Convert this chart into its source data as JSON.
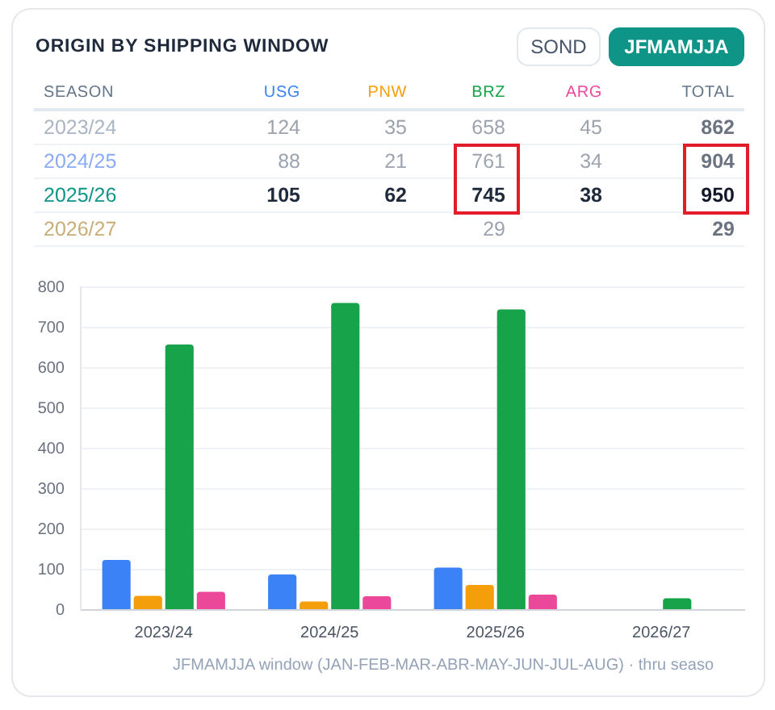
{
  "chart_data": [
    {
      "type": "other",
      "title": "ORIGIN BY SHIPPING WINDOW",
      "annotations": [
        "SOND",
        "JFMAMJJA",
        "SEASON"
      ],
      "data_labels": true,
      "categories": [
        "2023/24",
        "2024/25",
        "2025/26",
        "2026/27"
      ],
      "series": [
        {
          "name": "USG",
          "color": "#3b82f6",
          "values": [
            124,
            88,
            105,
            null
          ]
        },
        {
          "name": "PNW",
          "color": "#f59e0b",
          "values": [
            35,
            21,
            62,
            null
          ]
        },
        {
          "name": "BRZ",
          "color": "#16a34a",
          "values": [
            658,
            761,
            745,
            29
          ]
        },
        {
          "name": "ARG",
          "color": "#ec4899",
          "values": [
            45,
            34,
            38,
            null
          ]
        },
        {
          "name": "TOTAL",
          "color": "#64748b",
          "values": [
            862,
            904,
            950,
            29
          ]
        }
      ]
    },
    {
      "type": "bar",
      "categories": [
        "2023/24",
        "2024/25",
        "2025/26",
        "2026/27"
      ],
      "series": [
        {
          "color": "#3b82f6",
          "values": [
            124,
            88,
            105,
            null
          ]
        },
        {
          "color": "#f59e0b",
          "values": [
            35,
            21,
            62,
            null
          ]
        },
        {
          "color": "#16a34a",
          "values": [
            658,
            761,
            745,
            29
          ]
        },
        {
          "color": "#ec4899",
          "values": [
            45,
            34,
            38,
            null
          ]
        }
      ],
      "ylim": [
        0,
        800
      ],
      "yticks": [
        0,
        100,
        200,
        300,
        400,
        500,
        600,
        700,
        800
      ],
      "grid": "y",
      "annotations": [
        "JFMAMJJA window (JAN-FEB-MAR-ABR-MAY-JUN-JUL-AUG) · thru seaso"
      ]
    }
  ]
}
